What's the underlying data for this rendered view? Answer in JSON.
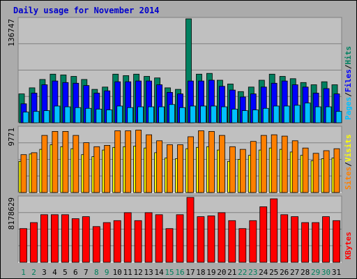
{
  "chart_data": {
    "type": "bar",
    "title": "Daily usage for November 2014",
    "categories": [
      "1",
      "2",
      "3",
      "4",
      "5",
      "6",
      "7",
      "8",
      "9",
      "10",
      "11",
      "12",
      "13",
      "14",
      "15",
      "16",
      "17",
      "18",
      "19",
      "20",
      "21",
      "22",
      "23",
      "24",
      "25",
      "26",
      "27",
      "28",
      "29",
      "30",
      "31"
    ],
    "weekend_days": [
      "1",
      "2",
      "8",
      "9",
      "15",
      "16",
      "22",
      "23",
      "29",
      "30"
    ],
    "panels": [
      {
        "name": "hits-files-pages",
        "ymax_label": "136747",
        "ylim": [
          0,
          136747
        ],
        "legend": [
          {
            "text": "Pages",
            "color": "#00c0ff"
          },
          {
            "text": "Files",
            "color": "#0000ff"
          },
          {
            "text": "Hits",
            "color": "#008060"
          }
        ],
        "series": [
          {
            "name": "Hits",
            "color": "#008060",
            "values": [
              38000,
              46000,
              57000,
              64000,
              63000,
              61000,
              57000,
              44000,
              47000,
              64000,
              62000,
              64000,
              61000,
              59000,
              46000,
              44000,
              136747,
              64000,
              65000,
              56000,
              51000,
              41000,
              47000,
              56000,
              64000,
              61000,
              58000,
              53000,
              50000,
              54000,
              50000
            ]
          },
          {
            "name": "Files",
            "color": "#0000ff",
            "values": [
              25000,
              39000,
              50000,
              55000,
              53000,
              52000,
              49000,
              39000,
              42000,
              54000,
              54000,
              55000,
              55000,
              50000,
              40000,
              38000,
              55000,
              55000,
              56000,
              48000,
              43000,
              34000,
              38000,
              47000,
              52000,
              55000,
              50000,
              47000,
              39000,
              45000,
              38000
            ]
          },
          {
            "name": "Pages",
            "color": "#00c0ff",
            "values": [
              14000,
              15000,
              16000,
              22000,
              21000,
              20000,
              19000,
              18000,
              17000,
              22000,
              20000,
              21000,
              21000,
              21000,
              24000,
              20000,
              22000,
              22000,
              22000,
              21000,
              18000,
              16000,
              17000,
              19000,
              22000,
              22000,
              23000,
              26000,
              21000,
              21000,
              15000
            ]
          }
        ]
      },
      {
        "name": "visits-sites",
        "ymax_label": "9771",
        "ylim": [
          0,
          9771
        ],
        "legend": [
          {
            "text": "Sites",
            "color": "#ff8000"
          },
          {
            "text": "Visits",
            "color": "#ffff00"
          }
        ],
        "series": [
          {
            "name": "Visits",
            "color": "#ffff00",
            "values": [
              4700,
              5800,
              6500,
              7200,
              6900,
              6600,
              5700,
              5400,
              6400,
              6800,
              6900,
              7000,
              6700,
              6000,
              5200,
              5100,
              6600,
              6800,
              6900,
              6400,
              4700,
              5000,
              5600,
              6400,
              6700,
              6500,
              6100,
              5600,
              4800,
              5100,
              5200
            ]
          },
          {
            "name": "Sites",
            "color": "#ff8000",
            "values": [
              5700,
              6000,
              8600,
              9200,
              9200,
              8600,
              7500,
              6900,
              7100,
              9300,
              9300,
              9400,
              8700,
              7800,
              7200,
              7200,
              8400,
              9300,
              9200,
              8600,
              6900,
              6500,
              7700,
              8600,
              8700,
              8500,
              7800,
              6700,
              5900,
              6300,
              6600
            ]
          }
        ]
      },
      {
        "name": "kbytes",
        "ymax_label": "8178629",
        "ylim": [
          0,
          8178629
        ],
        "legend": [
          {
            "text": "KBytes",
            "color": "#ff0000"
          }
        ],
        "series": [
          {
            "name": "KBytes",
            "color": "#ff0000",
            "values": [
              4250000,
              5000000,
              6000000,
              6000000,
              6000000,
              5500000,
              5750000,
              4500000,
              5000000,
              5250000,
              6250000,
              5250000,
              6250000,
              6000000,
              4250000,
              6000000,
              8178629,
              5750000,
              5850000,
              6250000,
              5250000,
              4250000,
              5250000,
              7000000,
              8000000,
              6000000,
              5750000,
              5000000,
              5000000,
              5750000,
              5250000
            ]
          }
        ]
      }
    ],
    "colors": {
      "panel_bg": "#c0c0c0",
      "frame_bg": "#b5b5b5",
      "weekend_label": "#00805c",
      "weekday_label": "#000000",
      "title": "#0000cc"
    }
  }
}
